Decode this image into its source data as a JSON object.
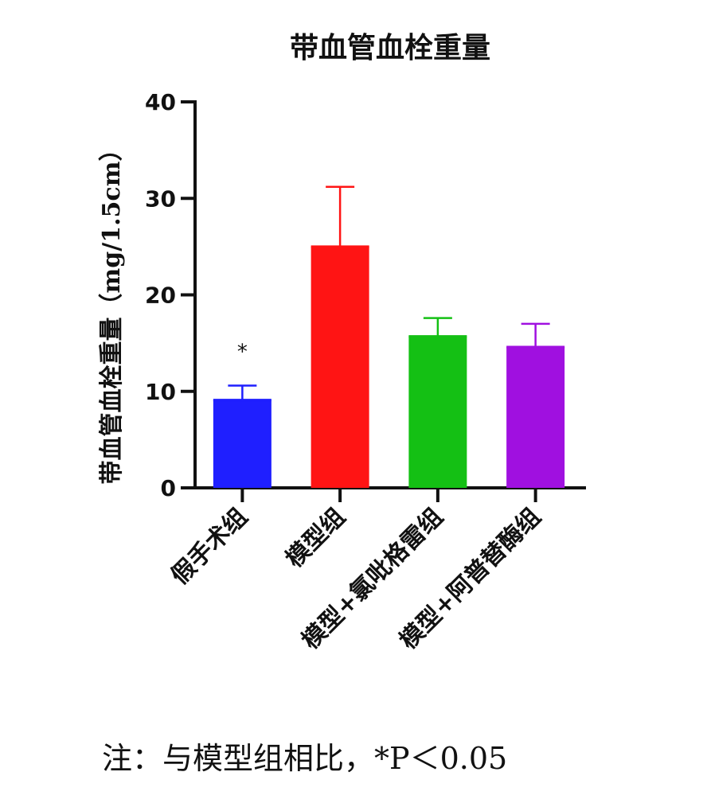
{
  "chart_data": {
    "type": "bar",
    "title": "带血管血栓重量",
    "ylabel": "带血管血栓重量（mg/1.5cm）",
    "xlabel": "",
    "ylim": [
      0,
      40
    ],
    "yticks": [
      "0",
      "10",
      "20",
      "30",
      "40"
    ],
    "categories": [
      "假手术组",
      "模型组",
      "模型+氯吡格雷组",
      "模型+阿普替酶组"
    ],
    "values": [
      9.1,
      25.0,
      15.7,
      14.6
    ],
    "error_upper": [
      10.6,
      31.2,
      17.6,
      17.0
    ],
    "colors": [
      "#1f1fff",
      "#ff1414",
      "#14c014",
      "#a010e0"
    ],
    "annotations": [
      {
        "category": "假手术组",
        "text": "*"
      }
    ],
    "grid": false,
    "legend": "none"
  },
  "footnote": "注：与模型组相比，*P＜0.05"
}
